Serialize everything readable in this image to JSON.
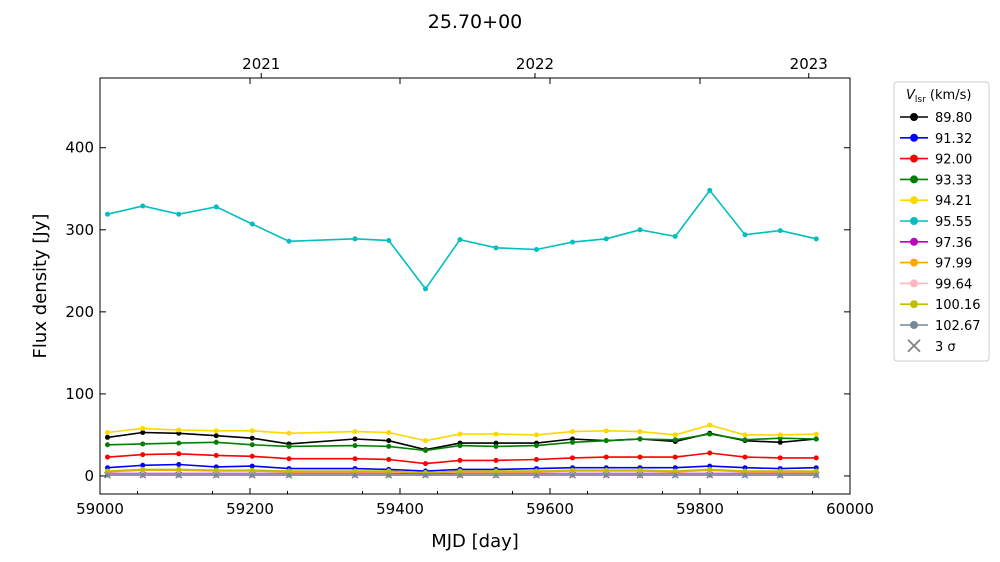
{
  "chart_data": {
    "type": "line",
    "title": "25.70+00",
    "xlabel": "MJD [day]",
    "ylabel": "Flux density [Jy]",
    "xlim": [
      59000,
      60000
    ],
    "ylim": [
      -22,
      485
    ],
    "xticks": [
      "59000",
      "59200",
      "59400",
      "59600",
      "59800",
      "60000"
    ],
    "yticks": [
      "0",
      "100",
      "200",
      "300",
      "400"
    ],
    "top_axis": {
      "ticks": [
        {
          "label": "2021",
          "mjd": 59215
        },
        {
          "label": "2022",
          "mjd": 59580
        },
        {
          "label": "2023",
          "mjd": 59945
        }
      ]
    },
    "legend": {
      "title": "V_lsr (km/s)",
      "title_main": "V",
      "title_sub": "lsr",
      "title_rest": " (km/s)",
      "sigma_label": "3 σ",
      "position": "outside-right"
    },
    "grid": false,
    "x": [
      59010,
      59057,
      59105,
      59155,
      59203,
      59252,
      59340,
      59385,
      59434,
      59480,
      59528,
      59582,
      59630,
      59675,
      59720,
      59767,
      59813,
      59860,
      59907,
      59955
    ],
    "series": [
      {
        "name": "89.80",
        "color": "#000000",
        "values": [
          47,
          53,
          52,
          49,
          46,
          39,
          45,
          43,
          32,
          40,
          40,
          40,
          45,
          43,
          45,
          42,
          52,
          43,
          41,
          45
        ]
      },
      {
        "name": "91.32",
        "color": "#0000ff",
        "values": [
          10,
          13,
          14,
          11,
          12,
          9,
          9,
          8,
          6,
          8,
          8,
          9,
          10,
          10,
          10,
          10,
          12,
          10,
          9,
          10
        ]
      },
      {
        "name": "92.00",
        "color": "#ff0000",
        "values": [
          23,
          26,
          27,
          25,
          24,
          21,
          21,
          20,
          15,
          19,
          19,
          20,
          22,
          23,
          23,
          23,
          28,
          23,
          22,
          22
        ]
      },
      {
        "name": "93.33",
        "color": "#008000",
        "values": [
          38,
          39,
          40,
          41,
          38,
          36,
          37,
          36,
          31,
          37,
          36,
          37,
          41,
          43,
          45,
          44,
          51,
          44,
          46,
          45
        ]
      },
      {
        "name": "94.21",
        "color": "#ffd700",
        "values": [
          53,
          58,
          56,
          55,
          55,
          52,
          54,
          53,
          43,
          51,
          51,
          50,
          54,
          55,
          54,
          50,
          62,
          50,
          50,
          51
        ]
      },
      {
        "name": "95.55",
        "color": "#00bfbf",
        "values": [
          319,
          329,
          319,
          328,
          307,
          286,
          289,
          287,
          228,
          288,
          278,
          276,
          285,
          289,
          300,
          292,
          348,
          294,
          299,
          289
        ]
      },
      {
        "name": "97.36",
        "color": "#bf00bf",
        "values": [
          3,
          3,
          3,
          3,
          3,
          3,
          3,
          3,
          2,
          3,
          3,
          3,
          3,
          3,
          3,
          3,
          3,
          3,
          3,
          3
        ]
      },
      {
        "name": "97.99",
        "color": "#ffa500",
        "values": [
          5,
          7,
          7,
          6,
          6,
          5,
          5,
          5,
          4,
          5,
          5,
          5,
          6,
          6,
          6,
          5,
          7,
          5,
          5,
          5
        ]
      },
      {
        "name": "99.64",
        "color": "#ffb6c1",
        "values": [
          2,
          2,
          2,
          2,
          2,
          2,
          2,
          2,
          1,
          2,
          2,
          2,
          2,
          2,
          2,
          2,
          2,
          2,
          2,
          2
        ]
      },
      {
        "name": "100.16",
        "color": "#bfbf00",
        "values": [
          6,
          8,
          8,
          7,
          7,
          6,
          6,
          6,
          4,
          6,
          6,
          6,
          7,
          7,
          7,
          6,
          8,
          6,
          6,
          6
        ]
      },
      {
        "name": "102.67",
        "color": "#778899",
        "values": [
          1,
          1,
          1,
          1,
          1,
          1,
          1,
          1,
          1,
          1,
          1,
          1,
          1,
          1,
          1,
          1,
          1,
          1,
          1,
          1
        ]
      }
    ],
    "sigma_values": [
      1,
      1,
      1,
      1,
      1,
      1,
      1,
      1,
      1,
      1,
      1,
      1,
      1,
      1,
      1,
      1,
      1,
      1,
      1,
      1
    ],
    "sigma_color": "#808080"
  }
}
